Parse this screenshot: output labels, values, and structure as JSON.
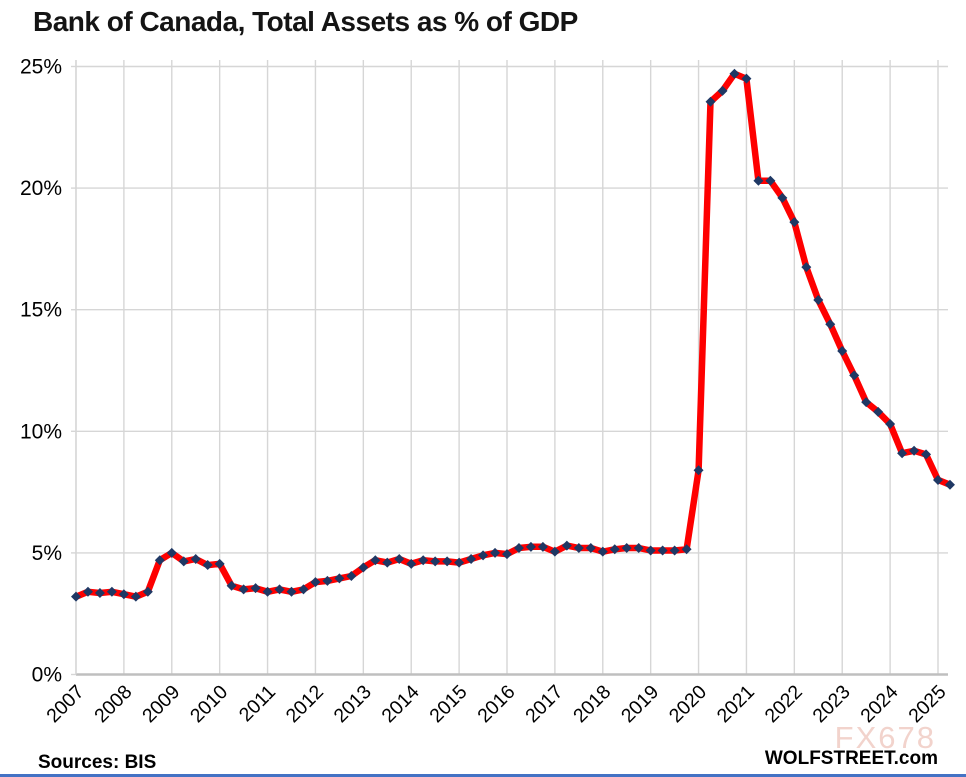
{
  "page": {
    "title": "Bank of Canada, Total Assets as % of GDP",
    "source_label": "Sources: BIS",
    "brand": "WOLFSTREET.com",
    "watermark": "FX678"
  },
  "colors": {
    "line": "#FE0000",
    "marker": "#1F3864",
    "grid": "#D6D6D6",
    "axis": "#BFBFBF",
    "tick_text": "#000000",
    "watermark_text": "#F2D3CC",
    "bottom_bar": "#4472C4"
  },
  "chart_data": {
    "type": "line",
    "title": "Bank of Canada, Total Assets as % of GDP",
    "frequency": "quarterly",
    "x_start": "2007-Q1",
    "x_end": "2025-Q2",
    "years": [
      2007,
      2008,
      2009,
      2010,
      2011,
      2012,
      2013,
      2014,
      2015,
      2016,
      2017,
      2018,
      2019,
      2020,
      2021,
      2022,
      2023,
      2024,
      2025
    ],
    "y_ticks": [
      0,
      5,
      10,
      15,
      20,
      25
    ],
    "y_tick_suffix": "%",
    "ylim": [
      0,
      25
    ],
    "grid": true,
    "legend": false,
    "series": [
      {
        "name": "Bank of Canada total assets as % of GDP",
        "values": [
          3.2,
          3.4,
          3.35,
          3.4,
          3.3,
          3.2,
          3.4,
          4.7,
          5.0,
          4.65,
          4.75,
          4.5,
          4.55,
          3.65,
          3.5,
          3.55,
          3.4,
          3.5,
          3.4,
          3.5,
          3.8,
          3.85,
          3.95,
          4.05,
          4.4,
          4.7,
          4.6,
          4.75,
          4.55,
          4.7,
          4.65,
          4.65,
          4.6,
          4.75,
          4.9,
          5.0,
          4.95,
          5.2,
          5.25,
          5.25,
          5.05,
          5.3,
          5.2,
          5.2,
          5.05,
          5.15,
          5.2,
          5.2,
          5.1,
          5.1,
          5.1,
          5.15,
          8.4,
          23.55,
          24.0,
          24.7,
          24.5,
          20.3,
          20.3,
          19.6,
          18.6,
          16.75,
          15.4,
          14.4,
          13.3,
          12.3,
          11.2,
          10.8,
          10.3,
          9.1,
          9.2,
          9.05,
          8.0,
          7.8
        ]
      }
    ]
  }
}
